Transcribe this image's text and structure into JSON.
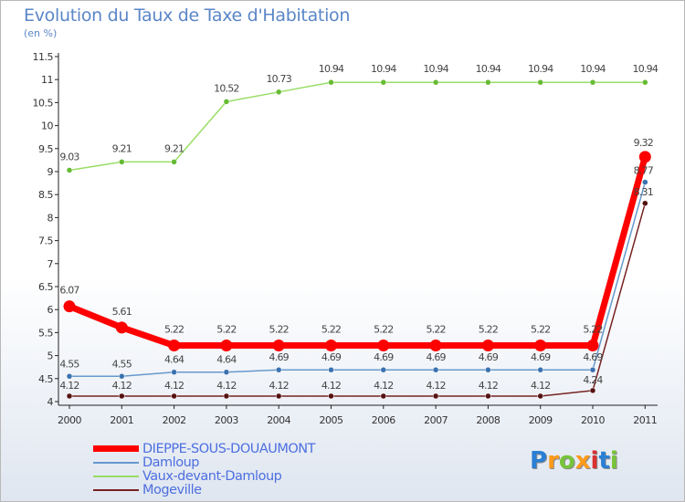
{
  "header": {
    "title": "Evolution du Taux de Taxe d'Habitation",
    "subtitle": "(en %)"
  },
  "logo": {
    "text": "Proxiti"
  },
  "chart_data": {
    "type": "line",
    "title": "Evolution du Taux de Taxe d'Habitation",
    "ylabel": "(en %)",
    "x": [
      "2000",
      "2001",
      "2002",
      "2003",
      "2004",
      "2005",
      "2006",
      "2007",
      "2008",
      "2009",
      "2010",
      "2011"
    ],
    "ylim": [
      4,
      11.5
    ],
    "yticks": [
      "4",
      "4.5",
      "5",
      "5.5",
      "6",
      "6.5",
      "7",
      "7.5",
      "8",
      "8.5",
      "9",
      "9.5",
      "10",
      "10.5",
      "11",
      "11.5"
    ],
    "grid": false,
    "legend_position": "bottom-left",
    "series": [
      {
        "name": "DIEPPE-SOUS-DOUAUMONT",
        "color": "#ff0000",
        "values": [
          6.07,
          5.61,
          5.22,
          5.22,
          5.22,
          5.22,
          5.22,
          5.22,
          5.22,
          5.22,
          5.22,
          9.32
        ],
        "labels": [
          "6.07",
          "5.61",
          "5.22",
          "5.22",
          "5.22",
          "5.22",
          "5.22",
          "5.22",
          "5.22",
          "5.22",
          "5.22",
          "9.32"
        ]
      },
      {
        "name": "Damloup",
        "color": "#6699cc",
        "values": [
          4.55,
          4.55,
          4.64,
          4.64,
          4.69,
          4.69,
          4.69,
          4.69,
          4.69,
          4.69,
          4.69,
          8.77
        ],
        "labels": [
          "4.55",
          "4.55",
          "4.64",
          "4.64",
          "4.69",
          "4.69",
          "4.69",
          "4.69",
          "4.69",
          "4.69",
          "4.69",
          "8.77"
        ]
      },
      {
        "name": "Vaux-devant-Damloup",
        "color": "#99dd66",
        "values": [
          9.03,
          9.21,
          9.21,
          10.52,
          10.73,
          10.94,
          10.94,
          10.94,
          10.94,
          10.94,
          10.94,
          10.94
        ],
        "labels": [
          "9.03",
          "9.21",
          "9.21",
          "10.52",
          "10.73",
          "10.94",
          "10.94",
          "10.94",
          "10.94",
          "10.94",
          "10.94",
          "10.94"
        ]
      },
      {
        "name": "Mogeville",
        "color": "#772222",
        "values": [
          4.12,
          4.12,
          4.12,
          4.12,
          4.12,
          4.12,
          4.12,
          4.12,
          4.12,
          4.12,
          4.24,
          8.31
        ],
        "labels": [
          "4.12",
          "4.12",
          "4.12",
          "4.12",
          "4.12",
          "4.12",
          "4.12",
          "4.12",
          "4.12",
          "4.12",
          "4.24",
          "8.31"
        ]
      }
    ]
  }
}
